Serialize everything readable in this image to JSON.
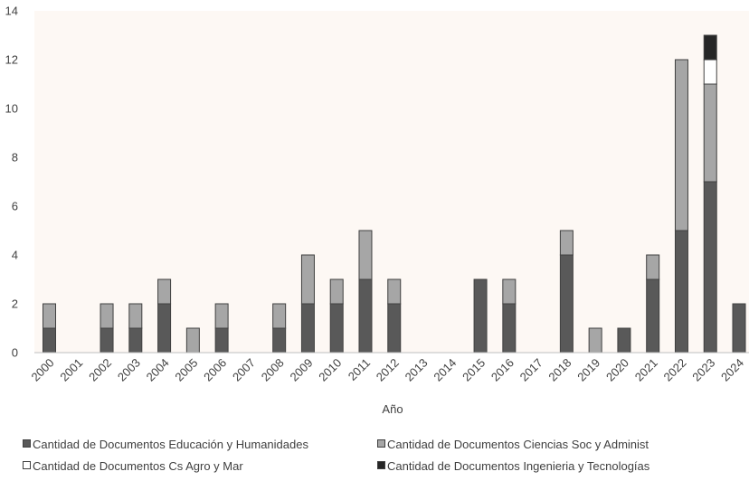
{
  "chart_data": {
    "type": "bar",
    "stacked": true,
    "xlabel": "Año",
    "ylabel": "",
    "ylim": [
      0,
      14
    ],
    "yticks": [
      0,
      2,
      4,
      6,
      8,
      10,
      12,
      14
    ],
    "grid": false,
    "plot_background": "#fdf8f4",
    "legend_position": "bottom",
    "categories": [
      "2000",
      "2001",
      "2002",
      "2003",
      "2004",
      "2005",
      "2006",
      "2007",
      "2008",
      "2009",
      "2010",
      "2011",
      "2012",
      "2013",
      "2014",
      "2015",
      "2016",
      "2017",
      "2018",
      "2019",
      "2020",
      "2021",
      "2022",
      "2023",
      "2024"
    ],
    "series": [
      {
        "name": "Cantidad de Documentos Educación y Humanidades",
        "color": "#595959",
        "values": [
          1,
          0,
          1,
          1,
          2,
          0,
          1,
          0,
          1,
          2,
          2,
          3,
          2,
          0,
          0,
          3,
          2,
          0,
          4,
          0,
          1,
          3,
          5,
          7,
          2
        ]
      },
      {
        "name": "Cantidad de Documentos Ciencias Soc y Administ",
        "color": "#a6a6a6",
        "values": [
          1,
          0,
          1,
          1,
          1,
          1,
          1,
          0,
          1,
          2,
          1,
          2,
          1,
          0,
          0,
          0,
          1,
          0,
          1,
          1,
          0,
          1,
          7,
          4,
          0
        ]
      },
      {
        "name": "Cantidad de Documentos Cs Agro y Mar",
        "color": "#ffffff",
        "values": [
          0,
          0,
          0,
          0,
          0,
          0,
          0,
          0,
          0,
          0,
          0,
          0,
          0,
          0,
          0,
          0,
          0,
          0,
          0,
          0,
          0,
          0,
          0,
          1,
          0
        ]
      },
      {
        "name": "Cantidad de Documentos Ingenieria y Tecnologías",
        "color": "#262626",
        "values": [
          0,
          0,
          0,
          0,
          0,
          0,
          0,
          0,
          0,
          0,
          0,
          0,
          0,
          0,
          0,
          0,
          0,
          0,
          0,
          0,
          0,
          0,
          0,
          1,
          0
        ]
      }
    ]
  }
}
